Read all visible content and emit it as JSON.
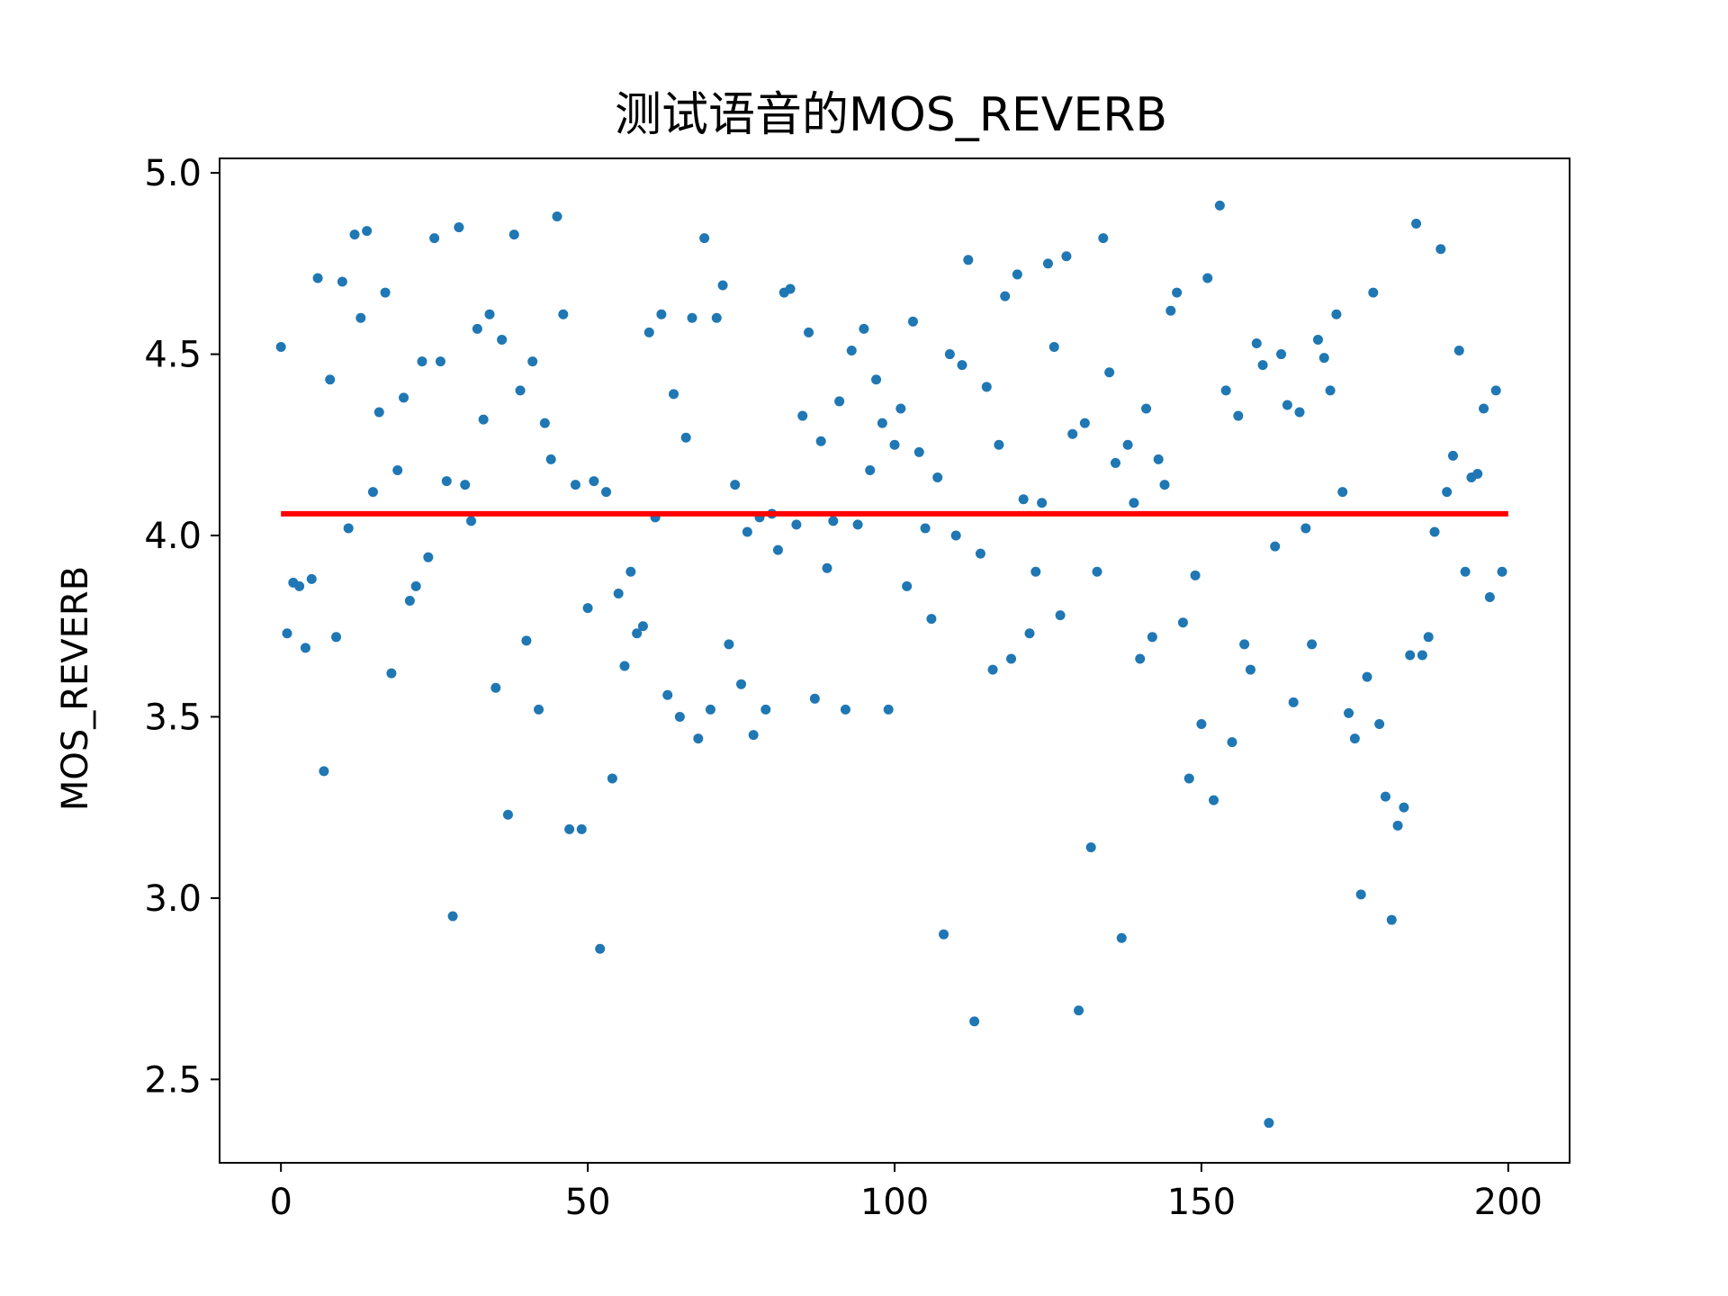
{
  "chart_data": {
    "type": "scatter",
    "title": "测试语音的MOS_REVERB",
    "xlabel": "",
    "ylabel": "MOS_REVERB",
    "xlim": [
      -10,
      210
    ],
    "ylim": [
      2.27,
      5.04
    ],
    "xticks": [
      0,
      50,
      100,
      150,
      200
    ],
    "xtick_labels": [
      "0",
      "50",
      "100",
      "150",
      "200"
    ],
    "yticks": [
      2.5,
      3.0,
      3.5,
      4.0,
      4.5,
      5.0
    ],
    "ytick_labels": [
      "2.5",
      "3.0",
      "3.5",
      "4.0",
      "4.5",
      "5.0"
    ],
    "grid": false,
    "colors": {
      "points": "#1f77b4",
      "mean_line": "#ff0000",
      "axes": "#000000"
    },
    "series": [
      {
        "x": [
          0,
          1,
          2,
          3,
          4,
          5,
          6,
          7,
          8,
          9,
          10,
          11,
          12,
          13,
          14,
          15,
          16,
          17,
          18,
          19,
          20,
          21,
          22,
          23,
          24,
          25,
          26,
          27,
          28,
          29,
          30,
          31,
          32,
          33,
          34,
          35,
          36,
          37,
          38,
          39,
          40,
          41,
          42,
          43,
          44,
          45,
          46,
          47,
          48,
          49,
          50,
          51,
          52,
          53,
          54,
          55,
          56,
          57,
          58,
          59,
          60,
          61,
          62,
          63,
          64,
          65,
          66,
          67,
          68,
          69,
          70,
          71,
          72,
          73,
          74,
          75,
          76,
          77,
          78,
          79,
          80,
          81,
          82,
          83,
          84,
          85,
          86,
          87,
          88,
          89,
          90,
          91,
          92,
          93,
          94,
          95,
          96,
          97,
          98,
          99,
          100,
          101,
          102,
          103,
          104,
          105,
          106,
          107,
          108,
          109,
          110,
          111,
          112,
          113,
          114,
          115,
          116,
          117,
          118,
          119,
          120,
          121,
          122,
          123,
          124,
          125,
          126,
          127,
          128,
          129,
          130,
          131,
          132,
          133,
          134,
          135,
          136,
          137,
          138,
          139,
          140,
          141,
          142,
          143,
          144,
          145,
          146,
          147,
          148,
          149,
          150,
          151,
          152,
          153,
          154,
          155,
          156,
          157,
          158,
          159,
          160,
          161,
          162,
          163,
          164,
          165,
          166,
          167,
          168,
          169,
          170,
          171,
          172,
          173,
          174,
          175,
          176,
          177,
          178,
          179,
          180,
          181,
          182,
          183,
          184,
          185,
          186,
          187,
          188,
          189,
          190,
          191,
          192,
          193,
          194,
          195,
          196,
          197,
          198,
          199
        ],
        "y": [
          4.52,
          3.73,
          3.87,
          3.86,
          3.69,
          3.88,
          4.71,
          3.35,
          4.43,
          3.72,
          4.7,
          4.02,
          4.83,
          4.6,
          4.84,
          4.12,
          4.34,
          4.67,
          3.62,
          4.18,
          4.38,
          3.82,
          3.86,
          4.48,
          3.94,
          4.82,
          4.48,
          4.15,
          2.95,
          4.85,
          4.14,
          4.04,
          4.57,
          4.32,
          4.61,
          3.58,
          4.54,
          3.23,
          4.83,
          4.4,
          3.71,
          4.48,
          3.52,
          4.31,
          4.21,
          4.88,
          4.61,
          3.19,
          4.14,
          3.19,
          3.8,
          4.15,
          2.86,
          4.12,
          3.33,
          3.84,
          3.64,
          3.9,
          3.73,
          3.75,
          4.56,
          4.05,
          4.61,
          3.56,
          4.39,
          3.5,
          4.27,
          4.6,
          3.44,
          4.82,
          3.52,
          4.6,
          4.69,
          3.7,
          4.14,
          3.59,
          4.01,
          3.45,
          4.05,
          3.52,
          4.06,
          3.96,
          4.67,
          4.68,
          4.03,
          4.33,
          4.56,
          3.55,
          4.26,
          3.91,
          4.04,
          4.37,
          3.52,
          4.51,
          4.03,
          4.57,
          4.18,
          4.43,
          4.31,
          3.52,
          4.25,
          4.35,
          3.86,
          4.59,
          4.23,
          4.02,
          3.77,
          4.16,
          2.9,
          4.5,
          4.0,
          4.47,
          4.76,
          2.66,
          3.95,
          4.41,
          3.63,
          4.25,
          4.66,
          3.66,
          4.72,
          4.1,
          3.73,
          3.9,
          4.09,
          4.75,
          4.52,
          3.78,
          4.77,
          4.28,
          2.69,
          4.31,
          3.14,
          3.9,
          4.82,
          4.45,
          4.2,
          2.89,
          4.25,
          4.09,
          3.66,
          4.35,
          3.72,
          4.21,
          4.14,
          4.62,
          4.67,
          3.76,
          3.33,
          3.89,
          3.48,
          4.71,
          3.27,
          4.91,
          4.4,
          3.43,
          4.33,
          3.7,
          3.63,
          4.53,
          4.47,
          2.38,
          3.97,
          4.5,
          4.36,
          3.54,
          4.34,
          4.02,
          3.7,
          4.54,
          4.49,
          4.4,
          4.61,
          4.12,
          3.51,
          3.44,
          3.01,
          3.61,
          4.67,
          3.48,
          3.28,
          2.94,
          3.2,
          3.25,
          3.67,
          4.86,
          3.67,
          3.72,
          4.01,
          4.79,
          4.12,
          4.22,
          4.51,
          3.9,
          4.16,
          4.17,
          4.35,
          3.83,
          4.4,
          3.9
        ]
      }
    ],
    "mean_line": {
      "y": 4.06,
      "x_start": 0,
      "x_end": 200
    }
  }
}
